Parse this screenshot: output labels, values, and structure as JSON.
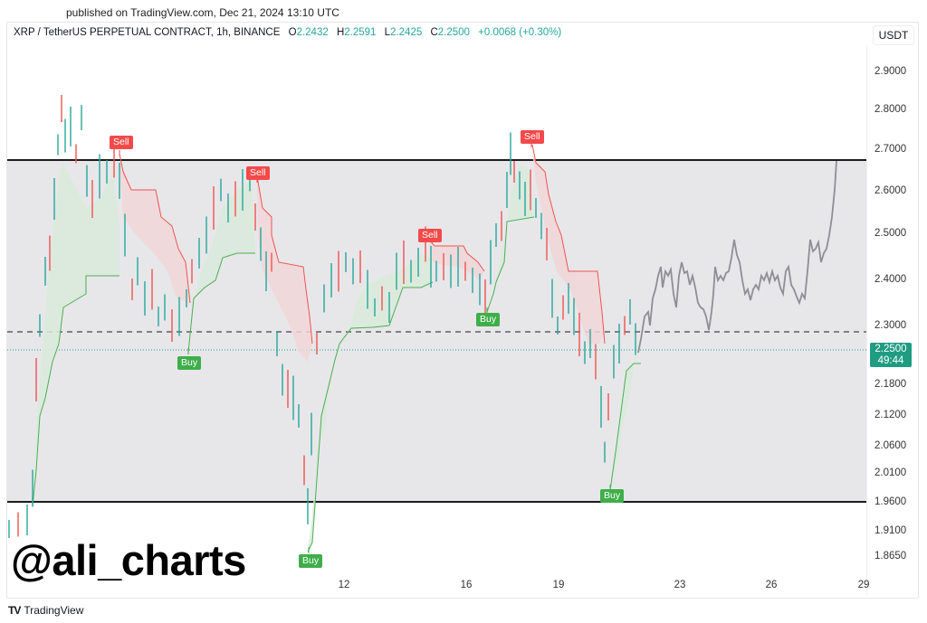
{
  "header": {
    "published": "published on TradingView.com, Dec 21, 2024 13:10 UTC"
  },
  "legend": {
    "symbol": "XRP / TetherUS PERPETUAL CONTRACT, 1h, BINANCE",
    "open_label": "O",
    "open": "2.2432",
    "high_label": "H",
    "high": "2.2591",
    "low_label": "L",
    "low": "2.2425",
    "close_label": "C",
    "close": "2.2500",
    "change": "+0.0068 (+0.30%)"
  },
  "currency": "USDT",
  "price_tag": {
    "price": "2.2500",
    "countdown": "49:44",
    "color": "#1f9c82"
  },
  "watermark": "@ali_charts",
  "footer": {
    "logo": "TV",
    "brand": "TradingView"
  },
  "y_ticks": [
    "2.9000",
    "2.8000",
    "2.7000",
    "2.6000",
    "2.5000",
    "2.4000",
    "2.3000",
    "2.1800",
    "2.1200",
    "2.0600",
    "2.0100",
    "1.9600",
    "1.9100",
    "1.8650"
  ],
  "x_ticks": [
    "12",
    "16",
    "19",
    "23",
    "26",
    "29"
  ],
  "signals": [
    {
      "label": "Sell",
      "type": "sell"
    },
    {
      "label": "Sell",
      "type": "sell"
    },
    {
      "label": "Buy",
      "type": "buy"
    },
    {
      "label": "Buy",
      "type": "buy"
    },
    {
      "label": "Sell",
      "type": "sell"
    },
    {
      "label": "Buy",
      "type": "buy"
    },
    {
      "label": "Sell",
      "type": "sell"
    },
    {
      "label": "Buy",
      "type": "buy"
    }
  ],
  "colors": {
    "up": "#26a69a",
    "down": "#ef5350",
    "range_fill": "#e7e7ea",
    "range_line": "#1c1c1c",
    "projection": "#8f8f93",
    "buy": "#3fae4a",
    "sell": "#f24a4a"
  },
  "chart_data": {
    "type": "line",
    "title": "XRP / TetherUS PERPETUAL CONTRACT, 1h, BINANCE",
    "xlabel": "",
    "ylabel": "USDT",
    "ylim": [
      1.84,
      2.94
    ],
    "x_ticks": [
      "12",
      "16",
      "19",
      "23",
      "26",
      "29"
    ],
    "ohlc_last": {
      "open": 2.2432,
      "high": 2.2591,
      "low": 2.2425,
      "close": 2.25,
      "change": 0.0068,
      "change_pct": 0.3
    },
    "range_box": {
      "upper": 2.68,
      "lower": 1.96
    },
    "dashed_level": 2.29,
    "current_price": 2.25,
    "series": [
      {
        "name": "XRP price (approx. path)",
        "x": [
          "~8",
          "~9",
          "~10",
          "~11",
          "~12",
          "~13",
          "~14",
          "~15",
          "~16",
          "~17",
          "~18",
          "~19",
          "~20",
          "~21",
          "~22"
        ],
        "values": [
          1.9,
          2.55,
          2.62,
          2.35,
          2.0,
          2.4,
          2.35,
          2.47,
          2.42,
          2.72,
          2.55,
          2.3,
          1.98,
          2.25,
          2.25
        ]
      },
      {
        "name": "Projection (fractal)",
        "x": [
          "~22",
          "~23",
          "~24",
          "~25",
          "~26",
          "~27",
          "~28"
        ],
        "values": [
          2.28,
          2.4,
          2.3,
          2.48,
          2.4,
          2.45,
          2.68
        ]
      }
    ],
    "signals": [
      {
        "type": "Sell",
        "approx_price": 2.72
      },
      {
        "type": "Sell",
        "approx_price": 2.64
      },
      {
        "type": "Buy",
        "approx_price": 2.24
      },
      {
        "type": "Buy",
        "approx_price": 1.87
      },
      {
        "type": "Sell",
        "approx_price": 2.49
      },
      {
        "type": "Buy",
        "approx_price": 2.33
      },
      {
        "type": "Sell",
        "approx_price": 2.73
      },
      {
        "type": "Buy",
        "approx_price": 1.98
      }
    ]
  }
}
